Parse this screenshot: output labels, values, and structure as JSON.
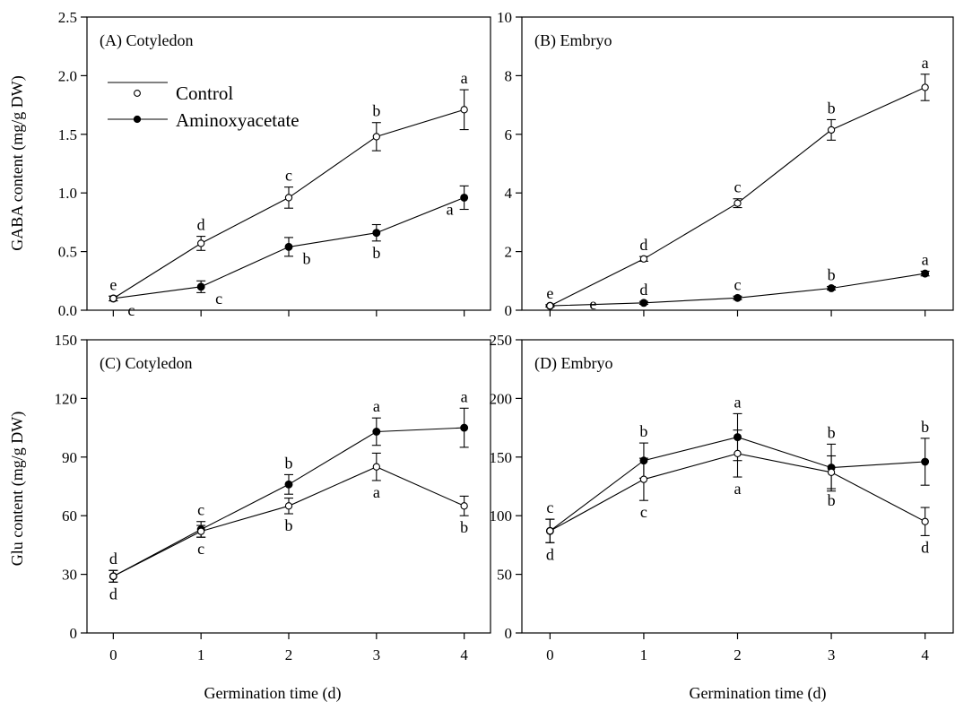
{
  "figure": {
    "x_axis_label": "Germination time (d)",
    "legend": {
      "entries": [
        "Control",
        "Aminoxyacetate"
      ]
    }
  },
  "chart_data": [
    {
      "type": "line",
      "title": "(A) Cotyledon",
      "xlabel": "",
      "ylabel": "GABA content (mg/g DW)",
      "x": [
        0,
        1,
        2,
        3,
        4
      ],
      "xlim": [
        -0.3,
        4.3
      ],
      "ylim": [
        0,
        2.5
      ],
      "yticks": [
        0.0,
        0.5,
        1.0,
        1.5,
        2.0,
        2.5
      ],
      "ytick_labels": [
        "0.0",
        "0.5",
        "1.0",
        "1.5",
        "2.0",
        "2.5"
      ],
      "legend": "top-left",
      "series": [
        {
          "name": "Control",
          "marker": "open-circle",
          "values": [
            0.1,
            0.57,
            0.96,
            1.48,
            1.71
          ],
          "errors": [
            0.02,
            0.06,
            0.09,
            0.12,
            0.17
          ],
          "labels": [
            "e",
            "d",
            "c",
            "b",
            "a"
          ],
          "label_pos": [
            "above",
            "above",
            "above",
            "above",
            "above"
          ]
        },
        {
          "name": "Aminoxyacetate",
          "marker": "filled-circle",
          "values": [
            0.1,
            0.2,
            0.54,
            0.66,
            0.96
          ],
          "errors": [
            0.02,
            0.05,
            0.08,
            0.07,
            0.1
          ],
          "labels": [
            "c",
            "c",
            "b",
            "b",
            "a"
          ],
          "label_pos": [
            "below-right",
            "below-right",
            "below-right",
            "below",
            "below-left"
          ]
        }
      ]
    },
    {
      "type": "line",
      "title": "(B) Embryo",
      "xlabel": "",
      "ylabel": "",
      "x": [
        0,
        1,
        2,
        3,
        4
      ],
      "xlim": [
        -0.3,
        4.3
      ],
      "ylim": [
        0,
        10
      ],
      "yticks": [
        0,
        2,
        4,
        6,
        8,
        10
      ],
      "ytick_labels": [
        "0",
        "2",
        "4",
        "6",
        "8",
        "10"
      ],
      "series": [
        {
          "name": "Control",
          "marker": "open-circle",
          "values": [
            0.15,
            1.75,
            3.65,
            6.15,
            7.6
          ],
          "errors": [
            0.04,
            0.08,
            0.15,
            0.35,
            0.45
          ],
          "labels": [
            "e",
            "d",
            "c",
            "b",
            "a"
          ],
          "label_pos": [
            "above",
            "above",
            "above",
            "above",
            "above"
          ]
        },
        {
          "name": "Aminoxyacetate",
          "marker": "filled-circle",
          "values": [
            0.15,
            0.25,
            0.42,
            0.75,
            1.25
          ],
          "errors": [
            0.03,
            0.05,
            0.06,
            0.06,
            0.08
          ],
          "labels": [
            "e",
            "d",
            "c",
            "b",
            "a"
          ],
          "label_pos": [
            "right",
            "above",
            "above",
            "above",
            "above"
          ]
        }
      ]
    },
    {
      "type": "line",
      "title": "(C) Cotyledon",
      "xlabel": "Germination time (d)",
      "ylabel": "Glu content (mg/g DW)",
      "x": [
        0,
        1,
        2,
        3,
        4
      ],
      "xlim": [
        -0.3,
        4.3
      ],
      "ylim": [
        0,
        150
      ],
      "yticks": [
        0,
        30,
        60,
        90,
        120,
        150
      ],
      "ytick_labels": [
        "0",
        "30",
        "60",
        "90",
        "120",
        "150"
      ],
      "xtick_labels": [
        "0",
        "1",
        "2",
        "3",
        "4"
      ],
      "series": [
        {
          "name": "Control",
          "marker": "open-circle",
          "values": [
            29,
            52,
            65,
            85,
            65
          ],
          "errors": [
            3,
            3,
            4,
            7,
            5
          ],
          "labels": [
            "d",
            "c",
            "b",
            "a",
            "b"
          ],
          "label_pos": [
            "below",
            "below",
            "below",
            "below",
            "below"
          ]
        },
        {
          "name": "Aminoxyacetate",
          "marker": "filled-circle",
          "values": [
            29,
            53,
            76,
            103,
            105
          ],
          "errors": [
            3,
            4,
            5,
            7,
            10
          ],
          "labels": [
            "d",
            "c",
            "b",
            "a",
            "a"
          ],
          "label_pos": [
            "above",
            "above",
            "above",
            "above",
            "above"
          ]
        }
      ]
    },
    {
      "type": "line",
      "title": "(D) Embryo",
      "xlabel": "Germination time (d)",
      "ylabel": "",
      "x": [
        0,
        1,
        2,
        3,
        4
      ],
      "xlim": [
        -0.3,
        4.3
      ],
      "ylim": [
        0,
        250
      ],
      "yticks": [
        0,
        50,
        100,
        150,
        200,
        250
      ],
      "ytick_labels": [
        "0",
        "50",
        "100",
        "150",
        "200",
        "250"
      ],
      "xtick_labels": [
        "0",
        "1",
        "2",
        "3",
        "4"
      ],
      "series": [
        {
          "name": "Control",
          "marker": "open-circle",
          "values": [
            87,
            131,
            153,
            137,
            95
          ],
          "errors": [
            10,
            18,
            20,
            14,
            12
          ],
          "labels": [
            "d",
            "c",
            "a",
            "b",
            "d"
          ],
          "label_pos": [
            "below",
            "below",
            "below",
            "below",
            "below"
          ]
        },
        {
          "name": "Aminoxyacetate",
          "marker": "filled-circle",
          "values": [
            87,
            147,
            167,
            141,
            146
          ],
          "errors": [
            10,
            15,
            20,
            20,
            20
          ],
          "labels": [
            "c",
            "b",
            "a",
            "b",
            "b"
          ],
          "label_pos": [
            "above",
            "above",
            "above",
            "above",
            "above"
          ]
        }
      ]
    }
  ]
}
